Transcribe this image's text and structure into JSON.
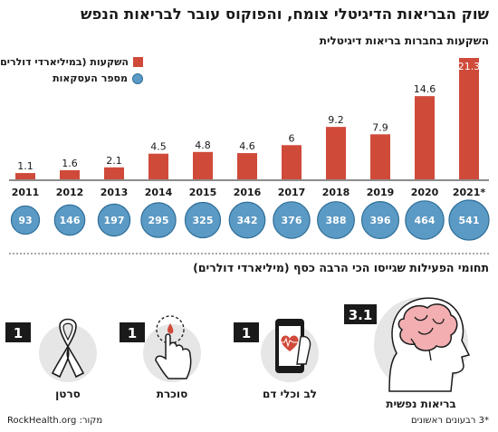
{
  "title": "שוק הבריאות הדיגיטלי צומח, והפוקוס עובר לבריאות הנפש",
  "subtitle": "השקעות בחברות בריאות דיגיטלית",
  "legend": {
    "investments": "השקעות (במיליארדי דולרים)",
    "deals": "מספר העסקאות"
  },
  "colors": {
    "bar": "#d04a3a",
    "circle": "#5b9ac4",
    "circle_stroke": "#2f6f99",
    "dark": "#1a1a1a"
  },
  "chart_data": [
    {
      "type": "bar",
      "categories": [
        "2011",
        "2012",
        "2013",
        "2014",
        "2015",
        "2016",
        "2017",
        "2018",
        "2019",
        "2020",
        "2021*"
      ],
      "series": [
        {
          "name": "השקעות (במיליארדי דולרים)",
          "values": [
            1.1,
            1.6,
            2.1,
            4.5,
            4.8,
            4.6,
            6,
            9.2,
            7.9,
            14.6,
            21.3
          ]
        },
        {
          "name": "מספר העסקאות",
          "values": [
            93,
            146,
            197,
            295,
            325,
            342,
            376,
            388,
            396,
            464,
            541
          ]
        }
      ],
      "value_labels": [
        "1.1",
        "1.6",
        "2.1",
        "4.5",
        "4.8",
        "4.6",
        "6",
        "9.2",
        "7.9",
        "14.6",
        "21.3"
      ],
      "ylim": [
        0,
        21.3
      ],
      "grid": false,
      "legend_position": "top-left"
    },
    {
      "type": "bar",
      "title": "תחומי הפעילות שגייסו הכי הרבה כסף (מיליארדי דולרים)",
      "categories": [
        "בריאות נפשית",
        "לב וכלי דם",
        "סוכרת",
        "סרטן"
      ],
      "values": [
        3.1,
        1,
        1,
        1
      ],
      "value_labels": [
        "3.1",
        "1",
        "1",
        "1"
      ]
    }
  ],
  "section_title": "תחומי הפעילות שגייסו הכי הרבה כסף (מיליארדי דולרים)",
  "activities": [
    {
      "label": "בריאות נפשית",
      "value": "3.1",
      "icon": "brain-icon"
    },
    {
      "label": "לב וכלי דם",
      "value": "1",
      "icon": "heart-phone-icon"
    },
    {
      "label": "סוכרת",
      "value": "1",
      "icon": "finger-blood-icon"
    },
    {
      "label": "סרטן",
      "value": "1",
      "icon": "ribbon-icon"
    }
  ],
  "footnote": "*3 רבעונים ראשונים",
  "source": "מקור: RockHealth.org"
}
